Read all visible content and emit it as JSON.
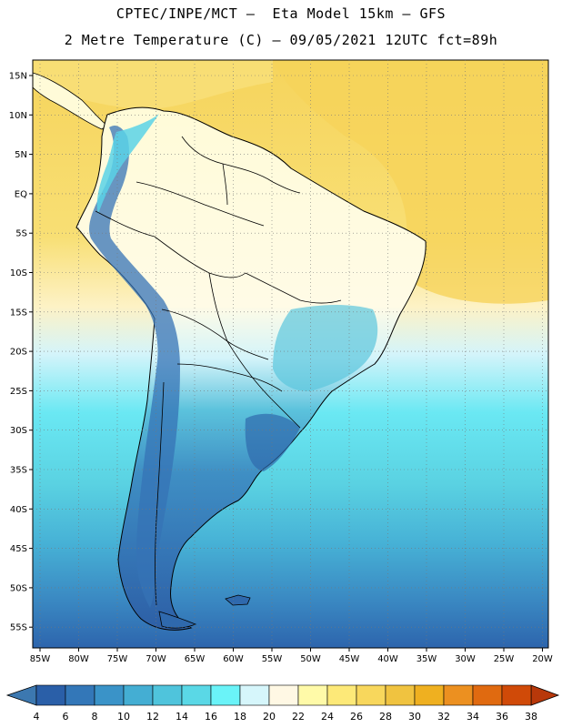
{
  "header": {
    "line1": "CPTEC/INPE/MCT —  Eta Model 15km — GFS",
    "line2": "2 Metre Temperature (C) — 09/05/2021 12UTC fct=89h"
  },
  "map": {
    "lat_labels": [
      "15N",
      "10N",
      "5N",
      "EQ",
      "5S",
      "10S",
      "15S",
      "20S",
      "25S",
      "30S",
      "35S",
      "40S",
      "45S",
      "50S",
      "55S"
    ],
    "lon_labels": [
      "85W",
      "80W",
      "75W",
      "70W",
      "65W",
      "60W",
      "55W",
      "50W",
      "45W",
      "40W",
      "35W",
      "30W",
      "25W",
      "20W"
    ]
  },
  "colorbar": {
    "labels": [
      "4",
      "6",
      "8",
      "10",
      "12",
      "14",
      "16",
      "18",
      "20",
      "22",
      "24",
      "26",
      "28",
      "30",
      "32",
      "34",
      "36",
      "38"
    ],
    "colors": [
      "#2a5fa8",
      "#3377b8",
      "#3a93c8",
      "#44aed3",
      "#4fc4dc",
      "#5ad8e6",
      "#6af3f8",
      "#d6f6fb",
      "#fff8e4",
      "#fffaa8",
      "#fde978",
      "#f8d75c",
      "#f0c340",
      "#efb020",
      "#ec9020",
      "#e06a10",
      "#d04a08",
      "#c03a05"
    ],
    "under_color": "#3c78b0",
    "over_color": "#b8380a"
  }
}
